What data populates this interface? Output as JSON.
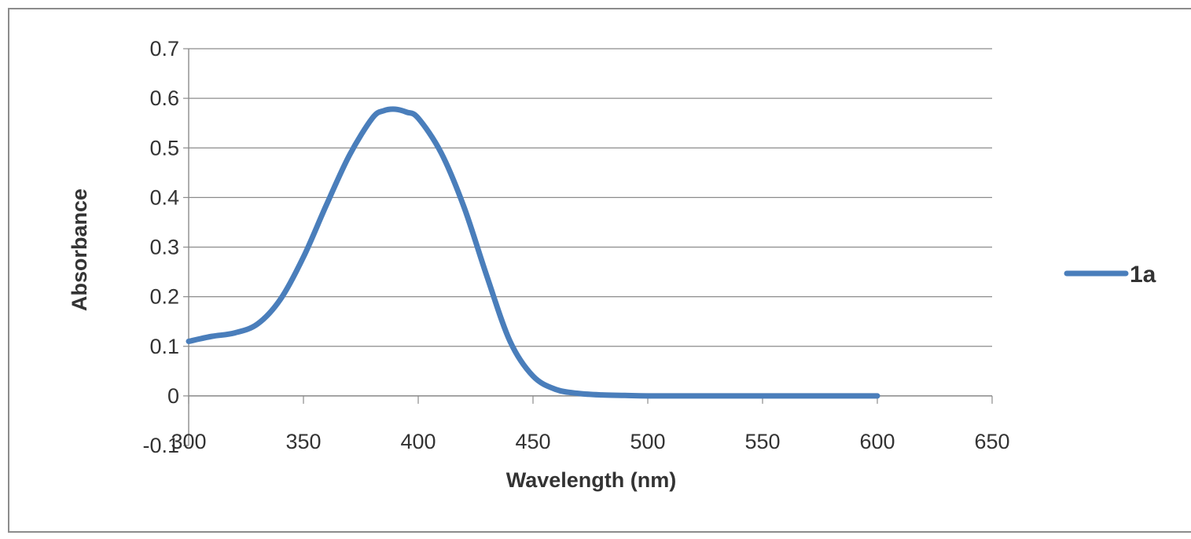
{
  "chart_data": {
    "type": "line",
    "xlabel": "Wavelength (nm)",
    "ylabel": "Absorbance",
    "xlim": [
      300,
      650
    ],
    "ylim": [
      -0.1,
      0.7
    ],
    "x_ticks": [
      "300",
      "350",
      "400",
      "450",
      "500",
      "550",
      "600",
      "650"
    ],
    "y_ticks": [
      "-0.1",
      "0",
      "0.1",
      "0.2",
      "0.3",
      "0.4",
      "0.5",
      "0.6",
      "0.7"
    ],
    "grid": true,
    "legend_position": "right",
    "series": [
      {
        "name": "1a",
        "color": "#4a7ebb",
        "x": [
          300,
          310,
          320,
          330,
          340,
          350,
          360,
          370,
          380,
          385,
          390,
          395,
          400,
          410,
          420,
          430,
          440,
          450,
          460,
          470,
          480,
          490,
          500,
          520,
          550,
          580,
          600
        ],
        "y": [
          0.11,
          0.12,
          0.127,
          0.145,
          0.195,
          0.28,
          0.385,
          0.485,
          0.56,
          0.575,
          0.578,
          0.572,
          0.56,
          0.49,
          0.38,
          0.24,
          0.11,
          0.04,
          0.013,
          0.005,
          0.002,
          0.001,
          0.0,
          0.0,
          0.0,
          0.0,
          0.0
        ]
      }
    ]
  }
}
